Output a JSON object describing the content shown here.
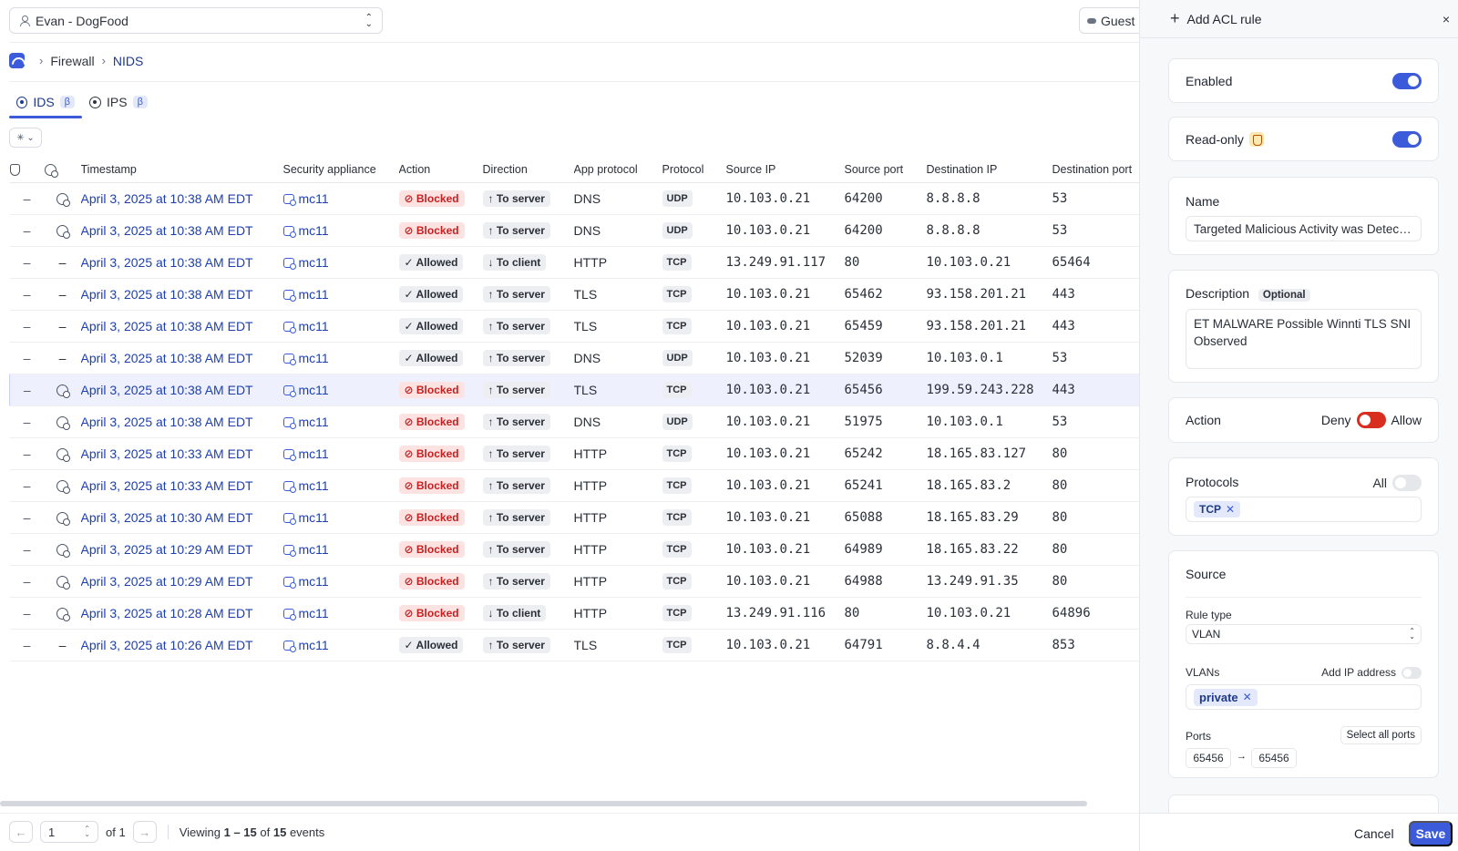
{
  "header": {
    "org_select": "Evan - DogFood",
    "guest_label": "Guest"
  },
  "breadcrumb": {
    "parent": "Firewall",
    "current": "NIDS"
  },
  "tabs": [
    {
      "label": "IDS",
      "beta": "β"
    },
    {
      "label": "IPS",
      "beta": "β"
    }
  ],
  "filter_icon": "filter-icon",
  "table": {
    "columns": [
      "Timestamp",
      "Security appliance",
      "Action",
      "Direction",
      "App protocol",
      "Protocol",
      "Source IP",
      "Source port",
      "Destination IP",
      "Destination port"
    ],
    "rows": [
      {
        "c1": "–",
        "sig": true,
        "timestamp": "April 3, 2025 at 10:38 AM EDT",
        "appliance": "mc11",
        "action": "Blocked",
        "direction": "↑ To server",
        "app": "DNS",
        "proto": "UDP",
        "src_ip": "10.103.0.21",
        "src_port": "64200",
        "dst_ip": "8.8.8.8",
        "dst_port": "53"
      },
      {
        "c1": "–",
        "sig": true,
        "timestamp": "April 3, 2025 at 10:38 AM EDT",
        "appliance": "mc11",
        "action": "Blocked",
        "direction": "↑ To server",
        "app": "DNS",
        "proto": "UDP",
        "src_ip": "10.103.0.21",
        "src_port": "64200",
        "dst_ip": "8.8.8.8",
        "dst_port": "53"
      },
      {
        "c1": "–",
        "sig": false,
        "timestamp": "April 3, 2025 at 10:38 AM EDT",
        "appliance": "mc11",
        "action": "Allowed",
        "direction": "↓ To client",
        "app": "HTTP",
        "proto": "TCP",
        "src_ip": "13.249.91.117",
        "src_port": "80",
        "dst_ip": "10.103.0.21",
        "dst_port": "65464"
      },
      {
        "c1": "–",
        "sig": false,
        "timestamp": "April 3, 2025 at 10:38 AM EDT",
        "appliance": "mc11",
        "action": "Allowed",
        "direction": "↑ To server",
        "app": "TLS",
        "proto": "TCP",
        "src_ip": "10.103.0.21",
        "src_port": "65462",
        "dst_ip": "93.158.201.21",
        "dst_port": "443"
      },
      {
        "c1": "–",
        "sig": false,
        "timestamp": "April 3, 2025 at 10:38 AM EDT",
        "appliance": "mc11",
        "action": "Allowed",
        "direction": "↑ To server",
        "app": "TLS",
        "proto": "TCP",
        "src_ip": "10.103.0.21",
        "src_port": "65459",
        "dst_ip": "93.158.201.21",
        "dst_port": "443"
      },
      {
        "c1": "–",
        "sig": false,
        "timestamp": "April 3, 2025 at 10:38 AM EDT",
        "appliance": "mc11",
        "action": "Allowed",
        "direction": "↑ To server",
        "app": "DNS",
        "proto": "UDP",
        "src_ip": "10.103.0.21",
        "src_port": "52039",
        "dst_ip": "10.103.0.1",
        "dst_port": "53"
      },
      {
        "c1": "–",
        "sig": true,
        "timestamp": "April 3, 2025 at 10:38 AM EDT",
        "appliance": "mc11",
        "action": "Blocked",
        "direction": "↑ To server",
        "app": "TLS",
        "proto": "TCP",
        "src_ip": "10.103.0.21",
        "src_port": "65456",
        "dst_ip": "199.59.243.228",
        "dst_port": "443",
        "selected": true
      },
      {
        "c1": "–",
        "sig": true,
        "timestamp": "April 3, 2025 at 10:38 AM EDT",
        "appliance": "mc11",
        "action": "Blocked",
        "direction": "↑ To server",
        "app": "DNS",
        "proto": "UDP",
        "src_ip": "10.103.0.21",
        "src_port": "51975",
        "dst_ip": "10.103.0.1",
        "dst_port": "53"
      },
      {
        "c1": "–",
        "sig": true,
        "timestamp": "April 3, 2025 at 10:33 AM EDT",
        "appliance": "mc11",
        "action": "Blocked",
        "direction": "↑ To server",
        "app": "HTTP",
        "proto": "TCP",
        "src_ip": "10.103.0.21",
        "src_port": "65242",
        "dst_ip": "18.165.83.127",
        "dst_port": "80"
      },
      {
        "c1": "–",
        "sig": true,
        "timestamp": "April 3, 2025 at 10:33 AM EDT",
        "appliance": "mc11",
        "action": "Blocked",
        "direction": "↑ To server",
        "app": "HTTP",
        "proto": "TCP",
        "src_ip": "10.103.0.21",
        "src_port": "65241",
        "dst_ip": "18.165.83.2",
        "dst_port": "80"
      },
      {
        "c1": "–",
        "sig": true,
        "timestamp": "April 3, 2025 at 10:30 AM EDT",
        "appliance": "mc11",
        "action": "Blocked",
        "direction": "↑ To server",
        "app": "HTTP",
        "proto": "TCP",
        "src_ip": "10.103.0.21",
        "src_port": "65088",
        "dst_ip": "18.165.83.29",
        "dst_port": "80"
      },
      {
        "c1": "–",
        "sig": true,
        "timestamp": "April 3, 2025 at 10:29 AM EDT",
        "appliance": "mc11",
        "action": "Blocked",
        "direction": "↑ To server",
        "app": "HTTP",
        "proto": "TCP",
        "src_ip": "10.103.0.21",
        "src_port": "64989",
        "dst_ip": "18.165.83.22",
        "dst_port": "80"
      },
      {
        "c1": "–",
        "sig": true,
        "timestamp": "April 3, 2025 at 10:29 AM EDT",
        "appliance": "mc11",
        "action": "Blocked",
        "direction": "↑ To server",
        "app": "HTTP",
        "proto": "TCP",
        "src_ip": "10.103.0.21",
        "src_port": "64988",
        "dst_ip": "13.249.91.35",
        "dst_port": "80"
      },
      {
        "c1": "–",
        "sig": true,
        "timestamp": "April 3, 2025 at 10:28 AM EDT",
        "appliance": "mc11",
        "action": "Blocked",
        "direction": "↓ To client",
        "app": "HTTP",
        "proto": "TCP",
        "src_ip": "13.249.91.116",
        "src_port": "80",
        "dst_ip": "10.103.0.21",
        "dst_port": "64896"
      },
      {
        "c1": "–",
        "sig": false,
        "timestamp": "April 3, 2025 at 10:26 AM EDT",
        "appliance": "mc11",
        "action": "Allowed",
        "direction": "↑ To server",
        "app": "TLS",
        "proto": "TCP",
        "src_ip": "10.103.0.21",
        "src_port": "64791",
        "dst_ip": "8.8.4.4",
        "dst_port": "853"
      }
    ]
  },
  "pager": {
    "page": "1",
    "of_label": "of 1",
    "viewing_prefix": "Viewing",
    "viewing_range": "1 – 15",
    "viewing_of": "of",
    "viewing_total": "15",
    "viewing_suffix": "events"
  },
  "panel": {
    "title": "Add ACL rule",
    "close": "×",
    "enabled_label": "Enabled",
    "readonly_label": "Read-only",
    "name_label": "Name",
    "name_value": "Targeted Malicious Activity was Detected",
    "description_label": "Description",
    "optional_label": "Optional",
    "description_value": "ET MALWARE Possible Winnti TLS SNI Observed",
    "action_label": "Action",
    "deny_label": "Deny",
    "allow_label": "Allow",
    "protocols_label": "Protocols",
    "all_label": "All",
    "protocol_chip": "TCP",
    "source_label": "Source",
    "rule_type_label": "Rule type",
    "rule_type_value": "VLAN",
    "vlans_label": "VLANs",
    "add_ip_label": "Add IP address",
    "vlan_chip": "private",
    "ports_label": "Ports",
    "select_all_ports": "Select all ports",
    "port_from": "65456",
    "port_arrow": "→",
    "port_to": "65456",
    "cancel_label": "Cancel",
    "save_label": "Save"
  },
  "colors": {
    "accent": "#3b5bdb",
    "blocked_bg": "#fde2e2",
    "blocked_fg": "#c81e1e",
    "link": "#1e40af"
  }
}
